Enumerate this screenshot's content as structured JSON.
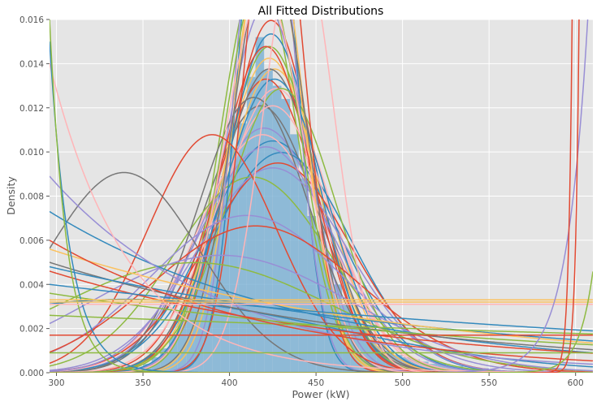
{
  "chart_data": {
    "type": "line",
    "title": "All Fitted Distributions",
    "xlabel": "Power (kW)",
    "ylabel": "Density",
    "xlim": [
      296,
      610
    ],
    "ylim": [
      0,
      0.016
    ],
    "x_ticks": [
      300,
      350,
      400,
      450,
      500,
      550,
      600
    ],
    "y_ticks": [
      "0.000",
      "0.002",
      "0.004",
      "0.006",
      "0.008",
      "0.010",
      "0.012",
      "0.014",
      "0.016"
    ],
    "grid": true,
    "legend": "none",
    "histogram": {
      "bin_width": 5,
      "bins": [
        {
          "x0": 340,
          "density": 0.0001
        },
        {
          "x0": 345,
          "density": 0.0002
        },
        {
          "x0": 350,
          "density": 0.0004
        },
        {
          "x0": 355,
          "density": 0.0007
        },
        {
          "x0": 360,
          "density": 0.0011
        },
        {
          "x0": 365,
          "density": 0.0017
        },
        {
          "x0": 370,
          "density": 0.0027
        },
        {
          "x0": 375,
          "density": 0.0038
        },
        {
          "x0": 380,
          "density": 0.005
        },
        {
          "x0": 385,
          "density": 0.0063
        },
        {
          "x0": 390,
          "density": 0.0077
        },
        {
          "x0": 395,
          "density": 0.0089
        },
        {
          "x0": 400,
          "density": 0.0102
        },
        {
          "x0": 405,
          "density": 0.0113
        },
        {
          "x0": 410,
          "density": 0.0134
        },
        {
          "x0": 415,
          "density": 0.0152
        },
        {
          "x0": 420,
          "density": 0.0137
        },
        {
          "x0": 425,
          "density": 0.013
        },
        {
          "x0": 430,
          "density": 0.0124
        },
        {
          "x0": 435,
          "density": 0.0108
        },
        {
          "x0": 440,
          "density": 0.0088
        },
        {
          "x0": 445,
          "density": 0.0071
        },
        {
          "x0": 450,
          "density": 0.0064
        },
        {
          "x0": 455,
          "density": 0.0052
        },
        {
          "x0": 460,
          "density": 0.004
        },
        {
          "x0": 465,
          "density": 0.0031
        },
        {
          "x0": 470,
          "density": 0.0024
        },
        {
          "x0": 475,
          "density": 0.0019
        },
        {
          "x0": 480,
          "density": 0.0015
        },
        {
          "x0": 485,
          "density": 0.0012
        },
        {
          "x0": 490,
          "density": 0.001
        },
        {
          "x0": 495,
          "density": 0.0008
        },
        {
          "x0": 500,
          "density": 0.0007
        },
        {
          "x0": 505,
          "density": 0.0006
        },
        {
          "x0": 510,
          "density": 0.0005
        },
        {
          "x0": 515,
          "density": 0.0004
        },
        {
          "x0": 520,
          "density": 0.0004
        },
        {
          "x0": 525,
          "density": 0.0003
        },
        {
          "x0": 530,
          "density": 0.0003
        },
        {
          "x0": 535,
          "density": 0.0002
        },
        {
          "x0": 540,
          "density": 0.0002
        },
        {
          "x0": 545,
          "density": 0.0002
        },
        {
          "x0": 550,
          "density": 0.0001
        },
        {
          "x0": 555,
          "density": 0.0001
        },
        {
          "x0": 560,
          "density": 0.0001
        }
      ]
    },
    "series": [
      {
        "color": "#348ABD",
        "kind": "normal",
        "mean": 425,
        "sd": 38
      },
      {
        "color": "#E24A33",
        "kind": "normal",
        "mean": 421,
        "sd": 30
      },
      {
        "color": "#8EBA42",
        "kind": "normal",
        "mean": 423,
        "sd": 27
      },
      {
        "color": "#777777",
        "kind": "normal",
        "mean": 418,
        "sd": 33
      },
      {
        "color": "#988ED5",
        "kind": "normal",
        "mean": 420,
        "sd": 36
      },
      {
        "color": "#FBC15E",
        "kind": "normal",
        "mean": 426,
        "sd": 29
      },
      {
        "color": "#FFB5B8",
        "kind": "normal",
        "mean": 427,
        "sd": 31
      },
      {
        "color": "#348ABD",
        "kind": "normal",
        "mean": 430,
        "sd": 40
      },
      {
        "color": "#E24A33",
        "kind": "normal",
        "mean": 424,
        "sd": 25
      },
      {
        "color": "#8EBA42",
        "kind": "normal",
        "mean": 417,
        "sd": 22
      },
      {
        "color": "#777777",
        "kind": "normal",
        "mean": 423,
        "sd": 29
      },
      {
        "color": "#988ED5",
        "kind": "normal",
        "mean": 421,
        "sd": 24
      },
      {
        "color": "#FBC15E",
        "kind": "normal",
        "mean": 423,
        "sd": 28
      },
      {
        "color": "#FFB5B8",
        "kind": "normal",
        "mean": 419,
        "sd": 37
      },
      {
        "color": "#348ABD",
        "kind": "normal",
        "mean": 424,
        "sd": 26
      },
      {
        "color": "#E24A33",
        "kind": "normal",
        "mean": 428,
        "sd": 42
      },
      {
        "color": "#8EBA42",
        "kind": "normal",
        "mean": 413,
        "sd": 45
      },
      {
        "color": "#777777",
        "kind": "normal",
        "mean": 414,
        "sd": 32
      },
      {
        "color": "#988ED5",
        "kind": "normal",
        "mean": 421,
        "sd": 39
      },
      {
        "color": "#FBC15E",
        "kind": "normal",
        "mean": 422,
        "sd": 20
      },
      {
        "color": "#FFB5B8",
        "kind": "normal",
        "mean": 425,
        "sd": 33
      },
      {
        "color": "#348ABD",
        "kind": "normal",
        "mean": 426,
        "sd": 30
      },
      {
        "color": "#E24A33",
        "kind": "normal",
        "mean": 421,
        "sd": 27
      },
      {
        "color": "#988ED5",
        "kind": "normal",
        "mean": 425,
        "sd": 43
      },
      {
        "color": "#8EBA42",
        "kind": "normal",
        "mean": 430,
        "sd": 31
      },
      {
        "color": "#348ABD",
        "kind": "normal",
        "mean": 422,
        "sd": 15
      },
      {
        "color": "#E24A33",
        "kind": "normal",
        "mean": 426,
        "sd": 17
      },
      {
        "color": "#FBC15E",
        "kind": "normal",
        "mean": 423,
        "sd": 19
      },
      {
        "color": "#988ED5",
        "kind": "normal",
        "mean": 421,
        "sd": 16
      },
      {
        "color": "#8EBA42",
        "kind": "normal",
        "mean": 419,
        "sd": 22
      },
      {
        "color": "#777777",
        "kind": "normal",
        "mean": 423,
        "sd": 21
      },
      {
        "color": "#FFB5B8",
        "kind": "normal",
        "mean": 420,
        "sd": 23
      },
      {
        "color": "#E24A33",
        "kind": "normal",
        "mean": 390,
        "sd": 37
      },
      {
        "color": "#777777",
        "kind": "normal",
        "mean": 339,
        "sd": 44
      },
      {
        "color": "#988ED5",
        "kind": "normal",
        "mean": 410,
        "sd": 56
      },
      {
        "color": "#E24A33",
        "kind": "normal",
        "mean": 415,
        "sd": 60
      },
      {
        "color": "#8EBA42",
        "kind": "normal",
        "mean": 380,
        "sd": 80
      },
      {
        "color": "#348ABD",
        "kind": "normal",
        "mean": 340,
        "sd": 120
      },
      {
        "color": "#988ED5",
        "kind": "normal",
        "mean": 395,
        "sd": 75
      },
      {
        "color": "#FFB5B8",
        "kind": "normal",
        "mean": 440,
        "sd": 20
      },
      {
        "color": "#348ABD",
        "kind": "exp",
        "x0": 296,
        "amp": 0.0073,
        "tau": 150
      },
      {
        "color": "#988ED5",
        "kind": "exp",
        "x0": 296,
        "amp": 0.0089,
        "tau": 100
      },
      {
        "color": "#777777",
        "kind": "exp",
        "x0": 296,
        "amp": 0.005,
        "tau": 200
      },
      {
        "color": "#348ABD",
        "kind": "exp",
        "x0": 296,
        "amp": 0.0048,
        "tau": 260
      },
      {
        "color": "#E24A33",
        "kind": "exp",
        "x0": 296,
        "amp": 0.0046,
        "tau": 190
      },
      {
        "color": "#8EBA42",
        "kind": "exp",
        "x0": 296,
        "amp": 0.0036,
        "tau": 300
      },
      {
        "color": "#FBC15E",
        "kind": "exp",
        "x0": 296,
        "amp": 0.0056,
        "tau": 220
      },
      {
        "color": "#348ABD",
        "kind": "exp",
        "x0": 296,
        "amp": 0.004,
        "tau": 420
      },
      {
        "color": "#8EBA42",
        "kind": "exp",
        "x0": 296,
        "amp": 0.0026,
        "tau": 800
      },
      {
        "color": "#E24A33",
        "kind": "exp",
        "x0": 296,
        "amp": 0.006,
        "tau": 130
      },
      {
        "color": "#FFB5B8",
        "kind": "exp",
        "x0": 296,
        "amp": 0.014,
        "tau": 45
      },
      {
        "color": "#348ABD",
        "kind": "exp",
        "x0": 296,
        "amp": 0.015,
        "tau": 12
      },
      {
        "color": "#8EBA42",
        "kind": "exp",
        "x0": 296,
        "amp": 0.016,
        "tau": 10
      },
      {
        "color": "#FBC15E",
        "kind": "flat",
        "y": 0.0032
      },
      {
        "color": "#FBC15E",
        "kind": "flat",
        "y": 0.0033
      },
      {
        "color": "#FFB5B8",
        "kind": "flat",
        "y": 0.0031
      },
      {
        "color": "#E24A33",
        "kind": "flat",
        "y": 0.0017
      },
      {
        "color": "#8EBA42",
        "kind": "flat",
        "y": 0.0009
      },
      {
        "color": "#988ED5",
        "kind": "rise",
        "x1": 607,
        "amp": 0.016,
        "tau": 12
      },
      {
        "color": "#E24A33",
        "kind": "rise",
        "x1": 602,
        "amp": 0.016,
        "tau": 2
      },
      {
        "color": "#E24A33",
        "kind": "rise",
        "x1": 598,
        "amp": 0.016,
        "tau": 2
      },
      {
        "color": "#8EBA42",
        "kind": "rise",
        "x1": 620,
        "amp": 0.016,
        "tau": 8
      }
    ]
  }
}
